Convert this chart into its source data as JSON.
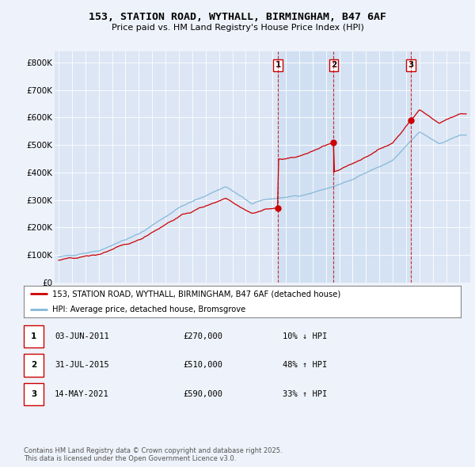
{
  "title_line1": "153, STATION ROAD, WYTHALL, BIRMINGHAM, B47 6AF",
  "title_line2": "Price paid vs. HM Land Registry's House Price Index (HPI)",
  "background_color": "#eef2fa",
  "plot_bg_color": "#dce6f5",
  "shaded_region_color": "#d0e4f5",
  "legend_line1": "153, STATION ROAD, WYTHALL, BIRMINGHAM, B47 6AF (detached house)",
  "legend_line2": "HPI: Average price, detached house, Bromsgrove",
  "sale_color": "#cc0000",
  "hpi_color": "#85b8d8",
  "vline_color": "#cc0000",
  "transactions": [
    {
      "label": "1",
      "x": 2011.42,
      "price": 270000
    },
    {
      "label": "2",
      "x": 2015.58,
      "price": 510000
    },
    {
      "label": "3",
      "x": 2021.37,
      "price": 590000
    }
  ],
  "table_rows": [
    [
      "1",
      "03-JUN-2011",
      "£270,000",
      "10% ↓ HPI"
    ],
    [
      "2",
      "31-JUL-2015",
      "£510,000",
      "48% ↑ HPI"
    ],
    [
      "3",
      "14-MAY-2021",
      "£590,000",
      "33% ↑ HPI"
    ]
  ],
  "footer": "Contains HM Land Registry data © Crown copyright and database right 2025.\nThis data is licensed under the Open Government Licence v3.0.",
  "ylim": [
    0,
    840000
  ],
  "yticks": [
    0,
    100000,
    200000,
    300000,
    400000,
    500000,
    600000,
    700000,
    800000
  ],
  "ytick_labels": [
    "£0",
    "£100K",
    "£200K",
    "£300K",
    "£400K",
    "£500K",
    "£600K",
    "£700K",
    "£800K"
  ],
  "xlim": [
    1994.7,
    2025.8
  ],
  "xticks": [
    1995,
    1996,
    1997,
    1998,
    1999,
    2000,
    2001,
    2002,
    2003,
    2004,
    2005,
    2006,
    2007,
    2008,
    2009,
    2010,
    2011,
    2012,
    2013,
    2014,
    2015,
    2016,
    2017,
    2018,
    2019,
    2020,
    2021,
    2022,
    2023,
    2024,
    2025
  ]
}
